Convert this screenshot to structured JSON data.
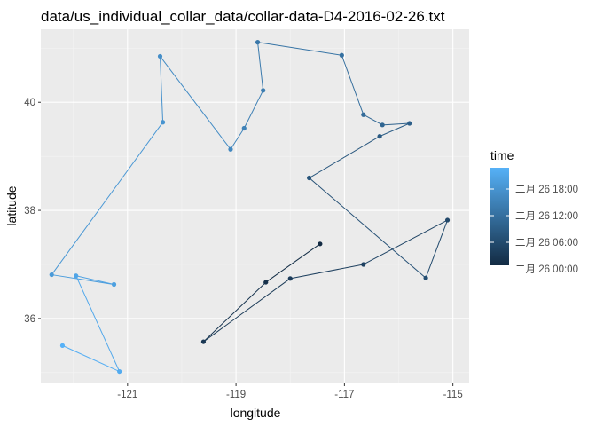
{
  "chart_data": {
    "type": "line",
    "title": "data/us_individual_collar_data/collar-data-D4-2016-02-26.txt",
    "xlabel": "longitude",
    "ylabel": "latitude",
    "xlim": [
      -122.6,
      -114.7
    ],
    "ylim": [
      34.8,
      41.35
    ],
    "xticks": [
      -121,
      -119,
      -117,
      -115
    ],
    "yticks": [
      36,
      38,
      40
    ],
    "grid": true,
    "legend": {
      "title": "time",
      "position": "right",
      "labels": [
        "二月 26 18:00",
        "二月 26 12:00",
        "二月 26 06:00",
        "二月 26 00:00"
      ],
      "low_color": "#132B43",
      "high_color": "#56B1F7"
    },
    "points": [
      {
        "lon": -117.45,
        "lat": 37.38
      },
      {
        "lon": -118.45,
        "lat": 36.67
      },
      {
        "lon": -119.6,
        "lat": 35.57
      },
      {
        "lon": -118.0,
        "lat": 36.74
      },
      {
        "lon": -116.65,
        "lat": 37.0
      },
      {
        "lon": -115.1,
        "lat": 37.82
      },
      {
        "lon": -115.5,
        "lat": 36.75
      },
      {
        "lon": -117.65,
        "lat": 38.6
      },
      {
        "lon": -116.35,
        "lat": 39.37
      },
      {
        "lon": -115.8,
        "lat": 39.61
      },
      {
        "lon": -116.3,
        "lat": 39.58
      },
      {
        "lon": -116.65,
        "lat": 39.77
      },
      {
        "lon": -117.05,
        "lat": 40.87
      },
      {
        "lon": -118.6,
        "lat": 41.11
      },
      {
        "lon": -118.5,
        "lat": 40.22
      },
      {
        "lon": -118.85,
        "lat": 39.52
      },
      {
        "lon": -119.1,
        "lat": 39.13
      },
      {
        "lon": -120.4,
        "lat": 40.85
      },
      {
        "lon": -120.35,
        "lat": 39.63
      },
      {
        "lon": -122.4,
        "lat": 36.81
      },
      {
        "lon": -121.25,
        "lat": 36.63
      },
      {
        "lon": -121.95,
        "lat": 36.79
      },
      {
        "lon": -121.15,
        "lat": 35.02
      },
      {
        "lon": -122.2,
        "lat": 35.5
      }
    ]
  }
}
